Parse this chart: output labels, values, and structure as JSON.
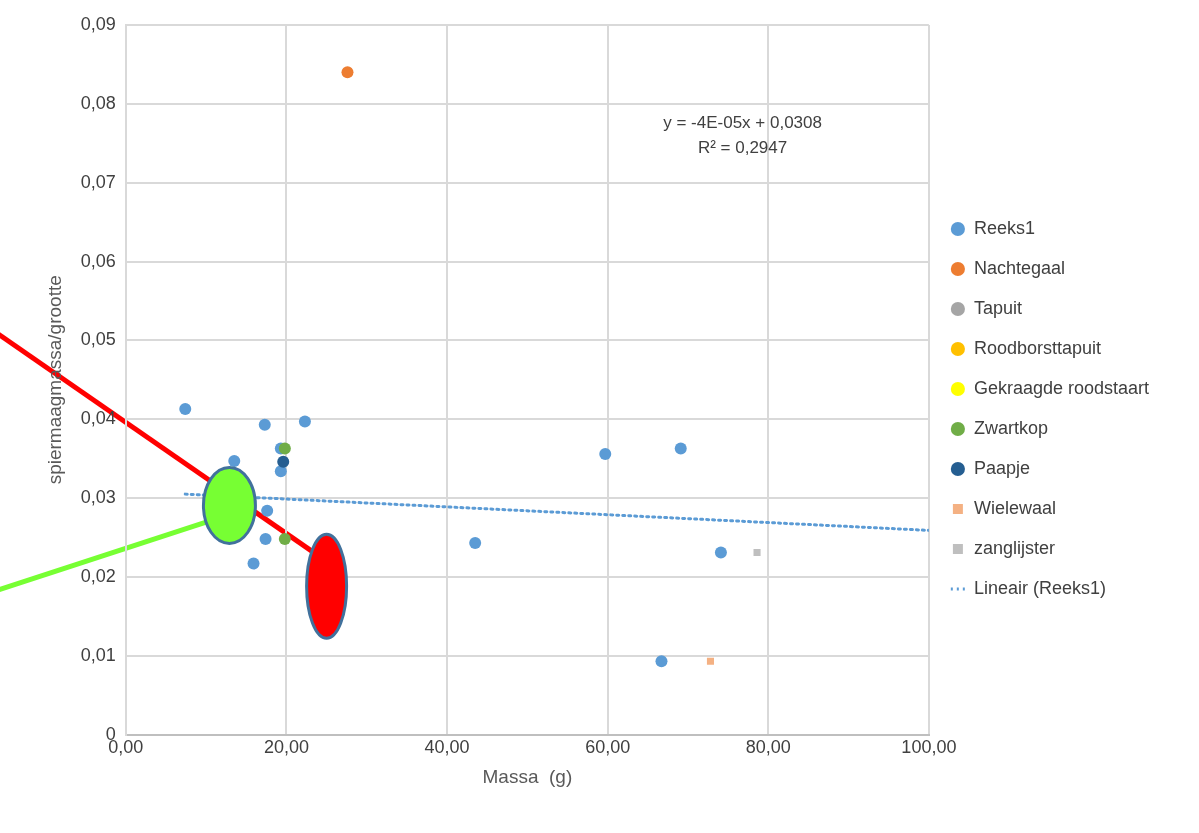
{
  "chart_data": {
    "type": "scatter",
    "xlabel": "Massa  (g)",
    "ylabel": "spiermaagmassa/grootte",
    "annotations": [
      "y = -4E-05x + 0,0308",
      "R² = 0,2947"
    ],
    "xlim": [
      0,
      100
    ],
    "ylim": [
      0,
      0.09
    ],
    "xticks": [
      {
        "value": 0,
        "label": "0,00"
      },
      {
        "value": 20,
        "label": "20,00"
      },
      {
        "value": 40,
        "label": "40,00"
      },
      {
        "value": 60,
        "label": "60,00"
      },
      {
        "value": 80,
        "label": "80,00"
      },
      {
        "value": 100,
        "label": "100,00"
      }
    ],
    "yticks": [
      0,
      {
        "value": 0.01,
        "label": "0,01"
      },
      {
        "value": 0.02,
        "label": "0,02"
      },
      {
        "value": 0.03,
        "label": "0,03"
      },
      {
        "value": 0.04,
        "label": "0,04"
      },
      {
        "value": 0.05,
        "label": "0,05"
      },
      {
        "value": 0.06,
        "label": "0,06"
      },
      {
        "value": 0.07,
        "label": "0,07"
      },
      {
        "value": 0.08,
        "label": "0,08"
      },
      {
        "value": 0.09,
        "label": "0,09"
      }
    ],
    "grid": true,
    "legend": "right",
    "marker": "circle",
    "series": [
      {
        "name": "Reeks1",
        "color": "#5b9bd5",
        "x": [
          7.4,
          17.3,
          22.3,
          13.5,
          19.3,
          19.3,
          17.4,
          15.9,
          17.6,
          59.7,
          69.1,
          43.5,
          74.1,
          66.7
        ],
        "values": [
          0.0413,
          0.0393,
          0.0397,
          0.0347,
          0.0363,
          0.0334,
          0.0248,
          0.0217,
          0.0284,
          0.0356,
          0.0363,
          0.0243,
          0.0231,
          0.0093
        ]
      },
      {
        "name": "Nachtegaal",
        "color": "#ed7d31",
        "x": [
          27.6
        ],
        "values": [
          0.084
        ]
      },
      {
        "name": "Tapuit",
        "color": "#a5a5a5"
      },
      {
        "name": "Roodborsttapuit",
        "color": "#ffc000"
      },
      {
        "name": "Gekraagde roodstaart",
        "color": "#ffff00"
      },
      {
        "name": "Zwartkop",
        "color": "#70ad47",
        "x": [
          19.8,
          19.8
        ],
        "values": [
          0.0363,
          0.0248
        ]
      },
      {
        "name": "Paapje",
        "color": "#255e91",
        "x": [
          19.6
        ],
        "values": [
          0.0346
        ]
      },
      {
        "name": "Wielewaal",
        "color": "#f4b183",
        "marker": "square",
        "x": [
          72.8
        ],
        "values": [
          0.0093
        ]
      },
      {
        "name": "zanglijster",
        "color": "#bfbfbf",
        "marker": "square",
        "x": [
          78.6
        ],
        "values": [
          0.0231
        ]
      },
      {
        "name": "Lineair (Reeks1)",
        "type": "line",
        "color": "#5b9bd5",
        "line_style": "dotted",
        "marker": "none",
        "x": [
          7.4,
          100
        ],
        "values": [
          0.0305,
          0.0259
        ]
      }
    ]
  }
}
